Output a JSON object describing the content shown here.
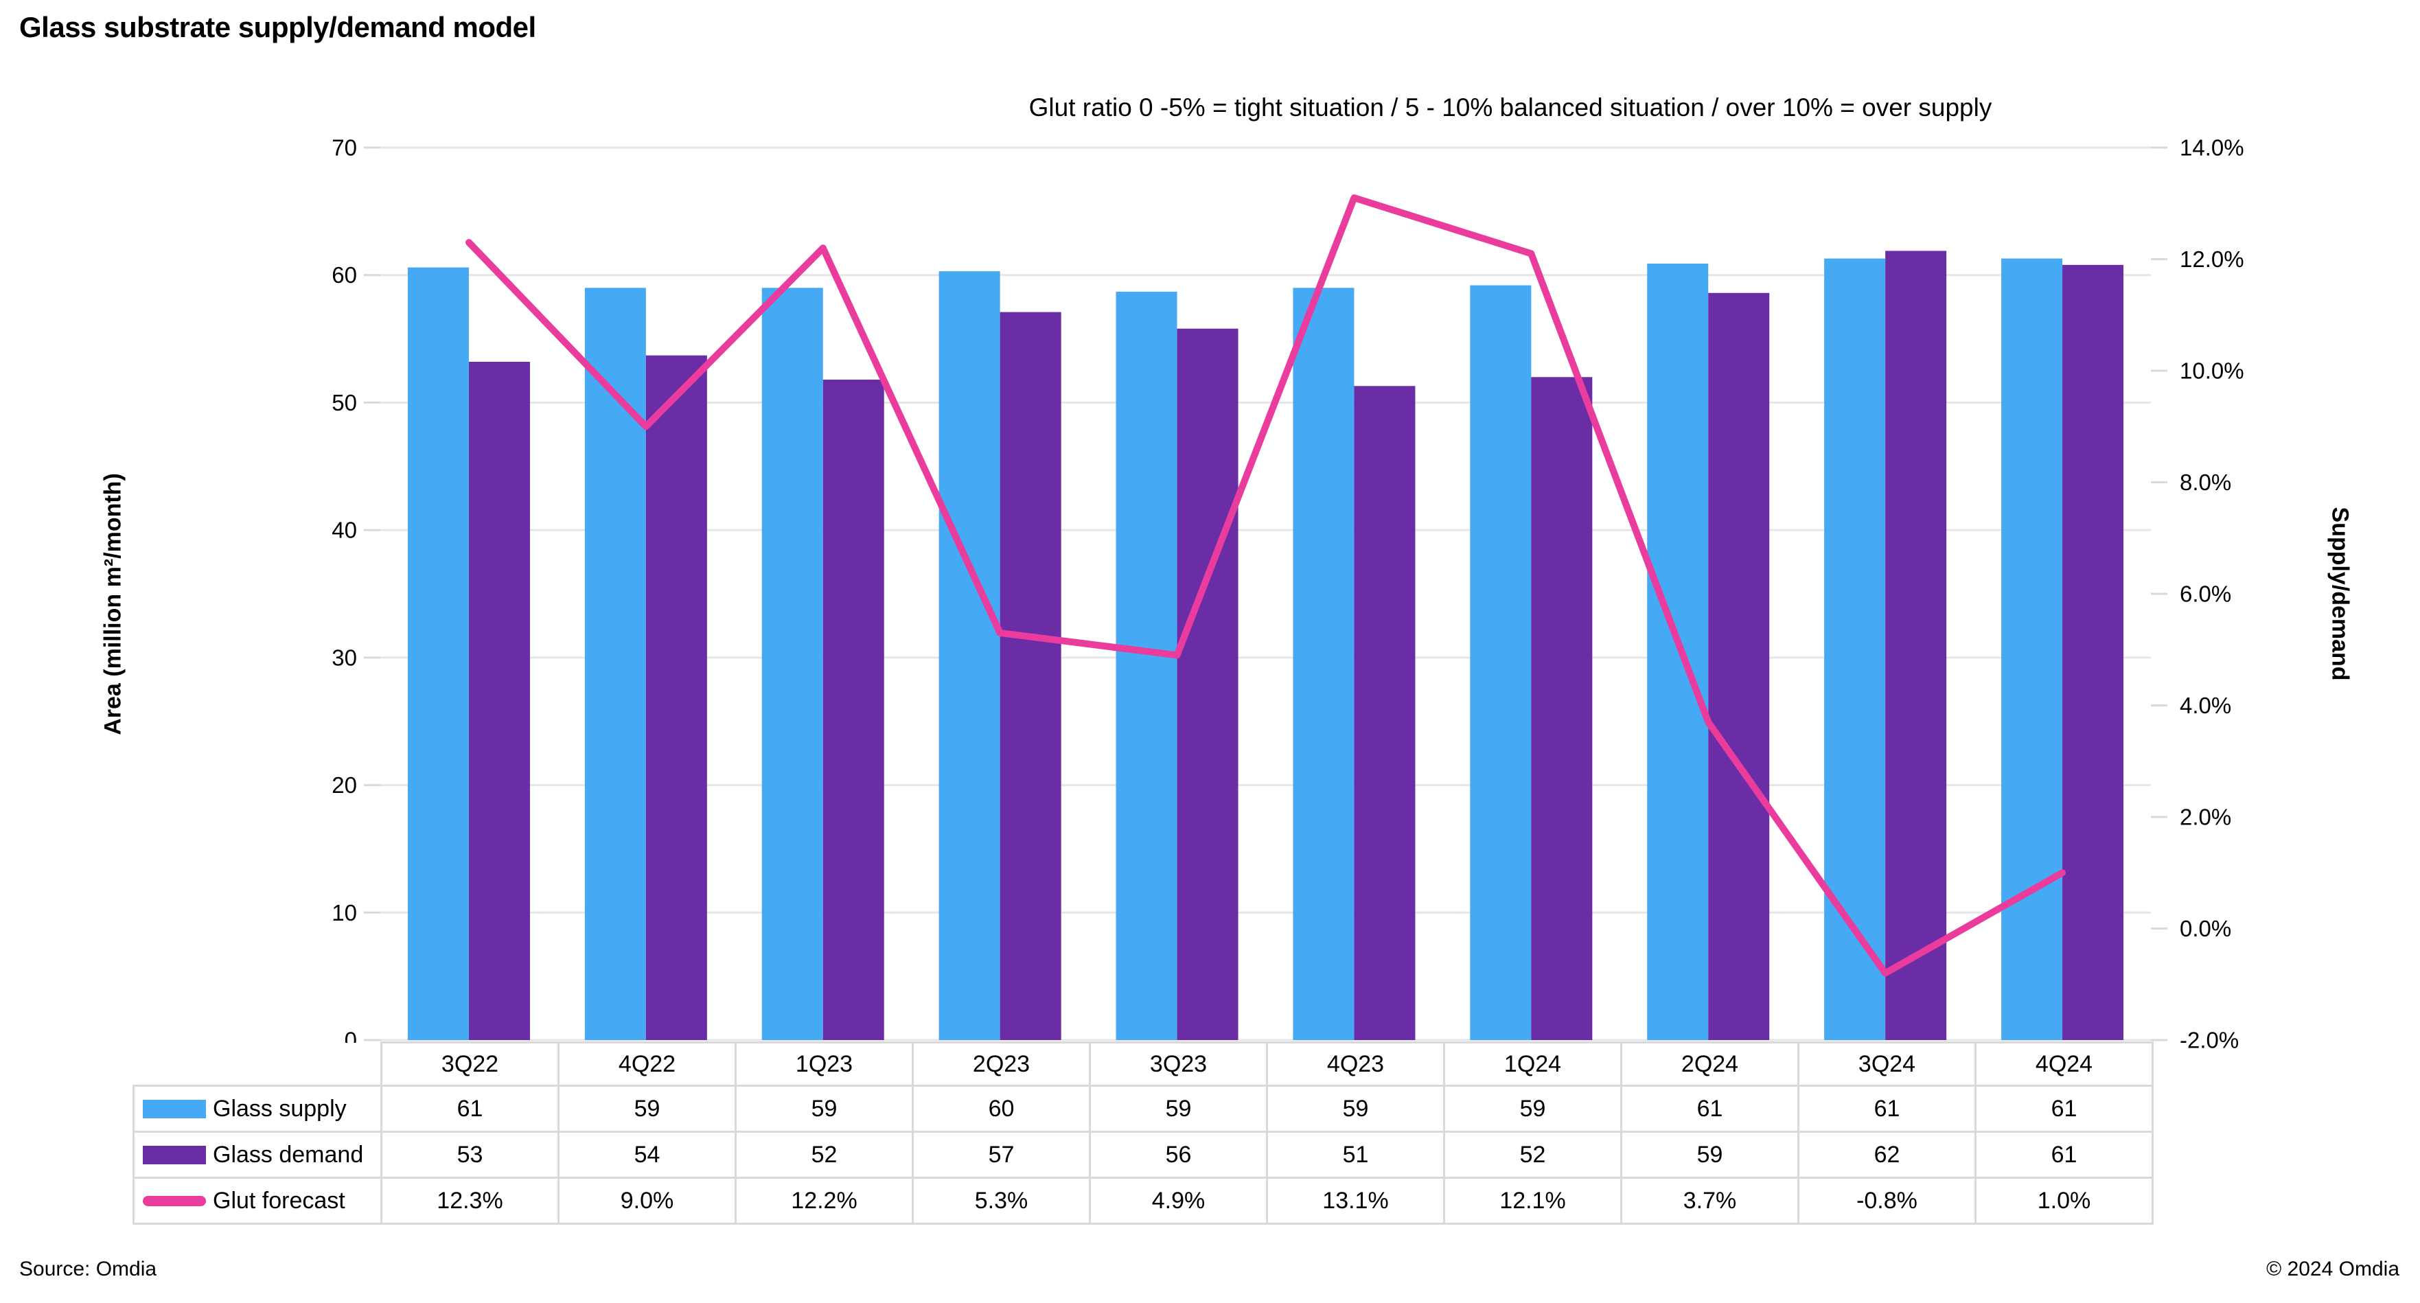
{
  "title": "Glass substrate supply/demand model",
  "subtitle": "Glut ratio 0 -5% = tight situation / 5 - 10% balanced situation / over 10% = over supply",
  "source": "Source: Omdia",
  "copyright": "© 2024 Omdia",
  "chart_data": {
    "type": "combo-bar-line",
    "categories": [
      "3Q22",
      "4Q22",
      "1Q23",
      "2Q23",
      "3Q23",
      "4Q23",
      "1Q24",
      "2Q24",
      "3Q24",
      "4Q24"
    ],
    "series": [
      {
        "name": "Glass supply",
        "type": "bar",
        "axis": "left",
        "color": "#45A9F3",
        "values": [
          61,
          59,
          59,
          60,
          59,
          59,
          59,
          61,
          61,
          61
        ],
        "values_precise": [
          60.6,
          59.0,
          59.0,
          60.3,
          58.7,
          59.0,
          59.2,
          60.9,
          61.3,
          61.3
        ],
        "display": [
          "61",
          "59",
          "59",
          "60",
          "59",
          "59",
          "59",
          "61",
          "61",
          "61"
        ]
      },
      {
        "name": "Glass demand",
        "type": "bar",
        "axis": "left",
        "color": "#6B2DA5",
        "values": [
          53,
          54,
          52,
          57,
          56,
          51,
          52,
          59,
          62,
          61
        ],
        "values_precise": [
          53.2,
          53.7,
          51.8,
          57.1,
          55.8,
          51.3,
          52.0,
          58.6,
          61.9,
          60.8
        ],
        "display": [
          "53",
          "54",
          "52",
          "57",
          "56",
          "51",
          "52",
          "59",
          "62",
          "61"
        ]
      },
      {
        "name": "Glut forecast",
        "type": "line",
        "axis": "right",
        "color": "#EA3C9D",
        "values": [
          12.3,
          9.0,
          12.2,
          5.3,
          4.9,
          13.1,
          12.1,
          3.7,
          -0.8,
          1.0
        ],
        "display": [
          "12.3%",
          "9.0%",
          "12.2%",
          "5.3%",
          "4.9%",
          "13.1%",
          "12.1%",
          "3.7%",
          "-0.8%",
          "1.0%"
        ]
      }
    ],
    "left_axis": {
      "title": "Area (million m²/month)",
      "min": 0,
      "max": 70,
      "step": 10,
      "tick_labels": [
        "0",
        "10",
        "20",
        "30",
        "40",
        "50",
        "60",
        "70"
      ]
    },
    "right_axis": {
      "title": "Supply/demand",
      "min": -2,
      "max": 14,
      "step": 2,
      "tick_labels": [
        "-2.0%",
        "0.0%",
        "2.0%",
        "4.0%",
        "6.0%",
        "8.0%",
        "10.0%",
        "12.0%",
        "14.0%"
      ]
    },
    "grid": "horizontal-major",
    "legend_position": "table-left-column",
    "grid_color": "#E6E6E6",
    "table_border_color": "#D9D9D9"
  }
}
